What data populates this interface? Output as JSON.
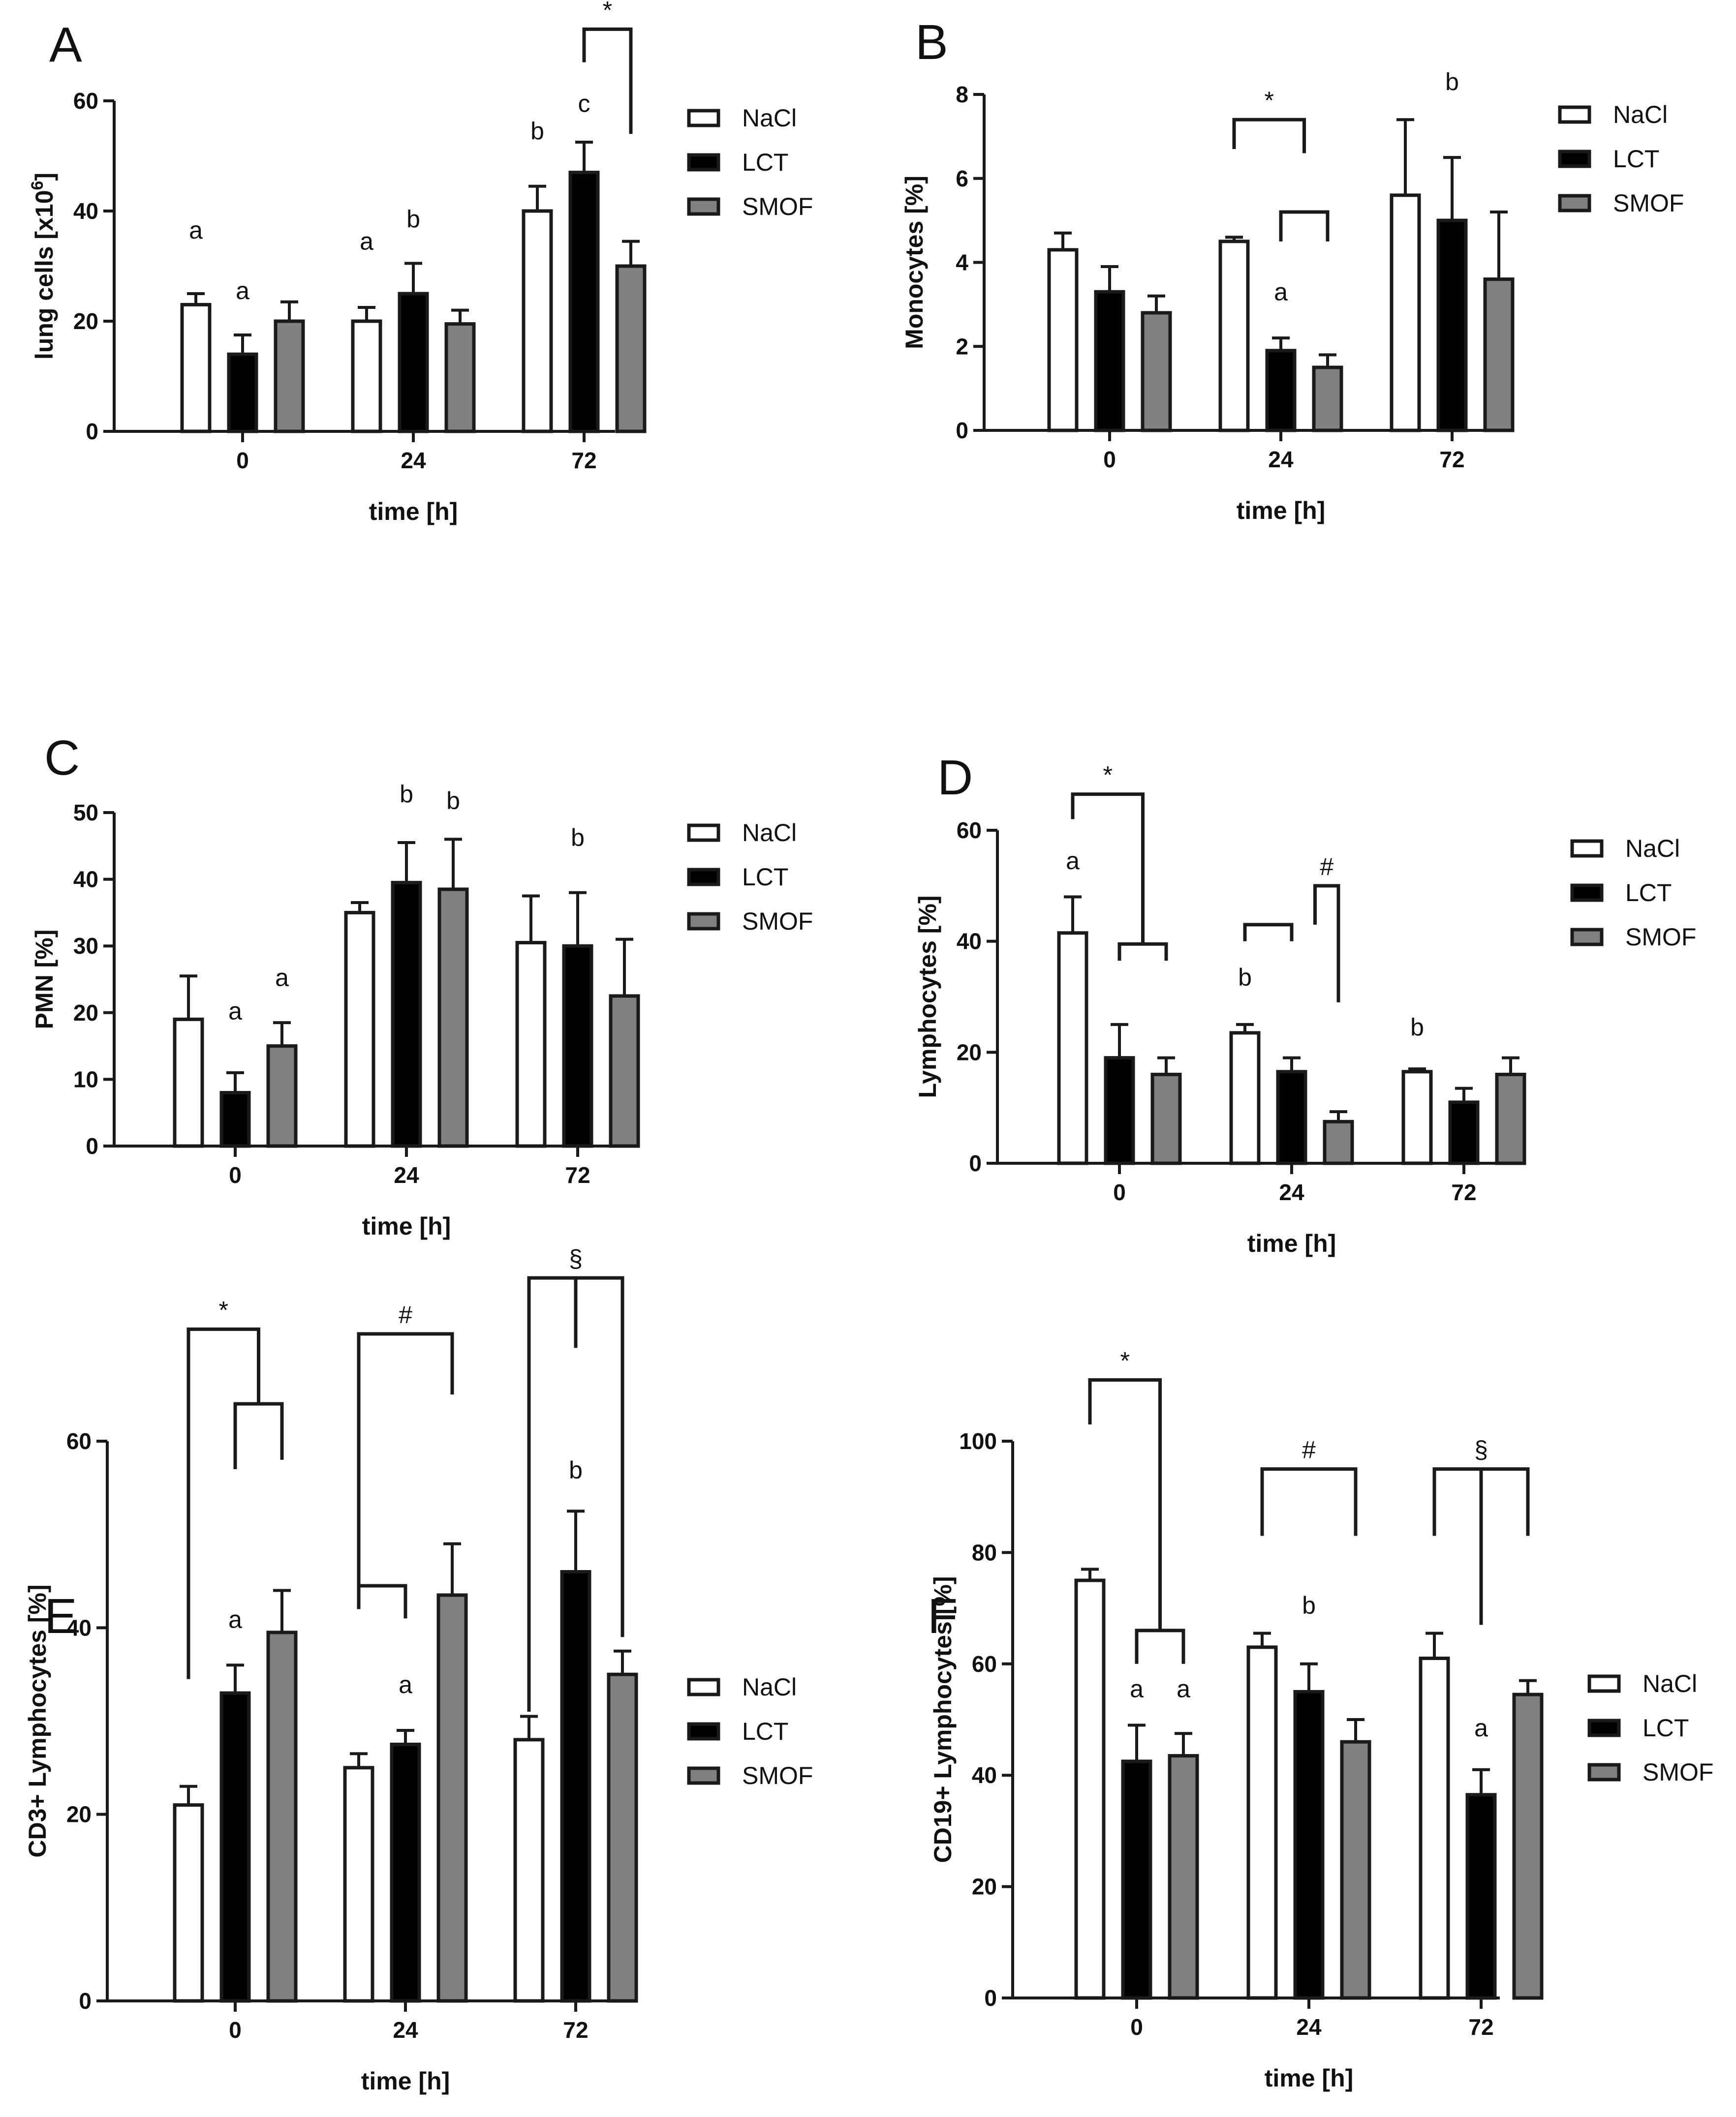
{
  "colors": {
    "NaCl": "#ffffff",
    "LCT": "#000000",
    "SMOF": "#808080",
    "stroke": "#1a1a1a"
  },
  "legend": [
    "NaCl",
    "LCT",
    "SMOF"
  ],
  "chart_data": [
    {
      "id": "A",
      "type": "bar",
      "panel_label": "A",
      "ylabel": "lung cells [x10",
      "ylabel_sup": "6",
      "ylabel_end": "]",
      "xlabel": "time [h]",
      "categories": [
        "0",
        "24",
        "72"
      ],
      "ylim": [
        0,
        60
      ],
      "yticks": [
        "0",
        "20",
        "40",
        "60"
      ],
      "series": [
        {
          "name": "NaCl",
          "values": [
            23,
            20,
            40
          ],
          "errors": [
            2,
            2.5,
            4.5
          ]
        },
        {
          "name": "LCT",
          "values": [
            14,
            25,
            47
          ],
          "errors": [
            3.5,
            5.5,
            5.5
          ]
        },
        {
          "name": "SMOF",
          "values": [
            20,
            19.5,
            30
          ],
          "errors": [
            3.5,
            2.5,
            4.5
          ]
        }
      ],
      "letters": [
        {
          "text": "a",
          "cat": 0,
          "series": 0,
          "value": 35
        },
        {
          "text": "a",
          "cat": 0,
          "series": 1,
          "value": 24
        },
        {
          "text": "a",
          "cat": 1,
          "series": 0,
          "value": 33
        },
        {
          "text": "b",
          "cat": 1,
          "series": 1,
          "value": 37
        },
        {
          "text": "b",
          "cat": 2,
          "series": 0,
          "value": 53
        },
        {
          "text": "c",
          "cat": 2,
          "series": 1,
          "value": 58
        }
      ],
      "brackets": [
        {
          "symbol": "*",
          "top": 73,
          "left": {
            "cat": 2,
            "series": 1,
            "bottom": 67
          },
          "right": {
            "cat": 2,
            "series": 2,
            "bottom": 54
          }
        }
      ]
    },
    {
      "id": "B",
      "type": "bar",
      "panel_label": "B",
      "ylabel": "Monocytes [%]",
      "xlabel": "time [h]",
      "categories": [
        "0",
        "24",
        "72"
      ],
      "ylim": [
        0,
        8
      ],
      "yticks": [
        "0",
        "2",
        "4",
        "6",
        "8"
      ],
      "series": [
        {
          "name": "NaCl",
          "values": [
            4.3,
            4.5,
            5.6
          ],
          "errors": [
            0.4,
            0.1,
            1.8
          ]
        },
        {
          "name": "LCT",
          "values": [
            3.3,
            1.9,
            5.0
          ],
          "errors": [
            0.6,
            0.3,
            1.5
          ]
        },
        {
          "name": "SMOF",
          "values": [
            2.8,
            1.5,
            3.6
          ],
          "errors": [
            0.4,
            0.3,
            1.6
          ]
        }
      ],
      "letters": [
        {
          "text": "a",
          "cat": 1,
          "series": 1,
          "value": 3.1
        },
        {
          "text": "b",
          "cat": 2,
          "series": 1,
          "value": 8.1
        }
      ],
      "brackets": [
        {
          "symbol": "*",
          "top": 7.4,
          "left": {
            "cat": 1,
            "series": 0,
            "bottom": 6.7
          },
          "right": {
            "cat": 1,
            "series": 12,
            "bottom": 6.6
          }
        },
        {
          "symbol": "",
          "top": 5.2,
          "left": {
            "cat": 1,
            "series": 1,
            "bottom": 4.5
          },
          "right": {
            "cat": 1,
            "series": 2,
            "bottom": 4.5
          }
        }
      ]
    },
    {
      "id": "C",
      "type": "bar",
      "panel_label": "C",
      "ylabel": "PMN [%]",
      "xlabel": "time [h]",
      "categories": [
        "0",
        "24",
        "72"
      ],
      "ylim": [
        0,
        50
      ],
      "yticks": [
        "0",
        "10",
        "20",
        "30",
        "40",
        "50"
      ],
      "series": [
        {
          "name": "NaCl",
          "values": [
            19,
            35,
            30.5
          ],
          "errors": [
            6.5,
            1.5,
            7
          ]
        },
        {
          "name": "LCT",
          "values": [
            8,
            39.5,
            30
          ],
          "errors": [
            3,
            6,
            8
          ]
        },
        {
          "name": "SMOF",
          "values": [
            15,
            38.5,
            22.5
          ],
          "errors": [
            3.5,
            7.5,
            8.5
          ]
        }
      ],
      "letters": [
        {
          "text": "a",
          "cat": 0,
          "series": 1,
          "value": 19
        },
        {
          "text": "a",
          "cat": 0,
          "series": 2,
          "value": 24
        },
        {
          "text": "b",
          "cat": 1,
          "series": 1,
          "value": 51.5
        },
        {
          "text": "b",
          "cat": 1,
          "series": 2,
          "value": 50.5
        },
        {
          "text": "b",
          "cat": 2,
          "series": 1,
          "value": 45
        }
      ],
      "brackets": []
    },
    {
      "id": "D",
      "type": "bar",
      "panel_label": "D",
      "ylabel": "Lymphocytes  [%]",
      "xlabel": "time [h]",
      "categories": [
        "0",
        "24",
        "72"
      ],
      "ylim": [
        0,
        60
      ],
      "yticks": [
        "0",
        "20",
        "40",
        "60"
      ],
      "series": [
        {
          "name": "NaCl",
          "values": [
            41.5,
            23.5,
            16.5
          ],
          "errors": [
            6.5,
            1.5,
            0.5
          ]
        },
        {
          "name": "LCT",
          "values": [
            19,
            16.5,
            11
          ],
          "errors": [
            6,
            2.5,
            2.5
          ]
        },
        {
          "name": "SMOF",
          "values": [
            16,
            7.5,
            16
          ],
          "errors": [
            3,
            1.8,
            3
          ]
        }
      ],
      "letters": [
        {
          "text": "a",
          "cat": 0,
          "series": 0,
          "value": 53
        },
        {
          "text": "b",
          "cat": 1,
          "series": 0,
          "value": 32
        },
        {
          "text": "b",
          "cat": 2,
          "series": 0,
          "value": 23
        }
      ],
      "brackets": [
        {
          "symbol": "*",
          "top": 66.5,
          "left": {
            "cat": 0,
            "series": 0,
            "bottom": 62
          },
          "right": {
            "cat": 0,
            "series": 12,
            "bottom": 39.5
          }
        },
        {
          "symbol": "",
          "top": 39.5,
          "left": {
            "cat": 0,
            "series": 1,
            "bottom": 36.5
          },
          "right": {
            "cat": 0,
            "series": 2,
            "bottom": 36.5
          }
        },
        {
          "symbol": "#",
          "top": 50,
          "left": {
            "cat": 1,
            "series": 12,
            "bottom": 43
          },
          "right": {
            "cat": 1,
            "series": 2,
            "bottom": 29
          }
        },
        {
          "symbol": "",
          "top": 43,
          "left": {
            "cat": 1,
            "series": 0,
            "bottom": 40
          },
          "right": {
            "cat": 1,
            "series": 1,
            "bottom": 40
          }
        }
      ]
    },
    {
      "id": "E",
      "type": "bar",
      "panel_label": "E",
      "ylabel": "CD3+ Lymphocytes [%]",
      "xlabel": "time [h]",
      "categories": [
        "0",
        "24",
        "72"
      ],
      "ylim": [
        0,
        60
      ],
      "yticks": [
        "0",
        "20",
        "40",
        "60"
      ],
      "series": [
        {
          "name": "NaCl",
          "values": [
            21,
            25,
            28
          ],
          "errors": [
            2,
            1.5,
            2.5
          ]
        },
        {
          "name": "LCT",
          "values": [
            33,
            27.5,
            46
          ],
          "errors": [
            3,
            1.5,
            6.5
          ]
        },
        {
          "name": "SMOF",
          "values": [
            39.5,
            43.5,
            35
          ],
          "errors": [
            4.5,
            5.5,
            2.5
          ]
        }
      ],
      "letters": [
        {
          "text": "a",
          "cat": 0,
          "series": 1,
          "value": 40
        },
        {
          "text": "a",
          "cat": 1,
          "series": 1,
          "value": 33
        },
        {
          "text": "b",
          "cat": 2,
          "series": 1,
          "value": 56
        }
      ],
      "brackets": [
        {
          "symbol": "*",
          "top": 72,
          "left": {
            "cat": 0,
            "series": 0,
            "bottom": 34.5
          },
          "right": {
            "cat": 0,
            "series": 12,
            "bottom": 64
          }
        },
        {
          "symbol": "",
          "top": 64,
          "left": {
            "cat": 0,
            "series": 1,
            "bottom": 57
          },
          "right": {
            "cat": 0,
            "series": 2,
            "bottom": 58
          }
        },
        {
          "symbol": "#",
          "top": 71.5,
          "left": {
            "cat": 1,
            "series": 0,
            "bottom": 42
          },
          "right": {
            "cat": 1,
            "series": 2,
            "bottom": 65
          }
        },
        {
          "symbol": "",
          "top": 44.5,
          "left": {
            "cat": 1,
            "series": 0,
            "bottom": 42
          },
          "right": {
            "cat": 1,
            "series": 1,
            "bottom": 41
          }
        },
        {
          "symbol": "§",
          "top": 77.5,
          "left": {
            "cat": 2,
            "series": 0,
            "bottom": 31
          },
          "right": {
            "cat": 2,
            "series": 2,
            "bottom": 39
          }
        },
        {
          "symbol": "",
          "top": 77.5,
          "left": {
            "cat": 2,
            "series": 1,
            "bottom": 70
          },
          "right": {
            "cat": 2,
            "series": 1,
            "bottom": 70
          }
        }
      ]
    },
    {
      "id": "F",
      "type": "bar",
      "panel_label": "F",
      "ylabel": "CD19+ Lymphocytes [%]",
      "xlabel": "time [h]",
      "categories": [
        "0",
        "24",
        "72"
      ],
      "ylim": [
        0,
        100
      ],
      "yticks": [
        "0",
        "20",
        "40",
        "60",
        "80",
        "100"
      ],
      "series": [
        {
          "name": "NaCl",
          "values": [
            75,
            63,
            61
          ],
          "errors": [
            2,
            2.5,
            4.5
          ]
        },
        {
          "name": "LCT",
          "values": [
            42.5,
            55,
            36.5
          ],
          "errors": [
            6.5,
            5,
            4.5
          ]
        },
        {
          "name": "SMOF",
          "values": [
            43.5,
            46,
            54.5
          ],
          "errors": [
            4,
            4,
            2.5
          ]
        }
      ],
      "letters": [
        {
          "text": "a",
          "cat": 0,
          "series": 1,
          "value": 54
        },
        {
          "text": "a",
          "cat": 0,
          "series": 2,
          "value": 54
        },
        {
          "text": "b",
          "cat": 1,
          "series": 1,
          "value": 69
        },
        {
          "text": "a",
          "cat": 2,
          "series": 1,
          "value": 47
        }
      ],
      "brackets": [
        {
          "symbol": "*",
          "top": 111,
          "left": {
            "cat": 0,
            "series": 0,
            "bottom": 103
          },
          "right": {
            "cat": 0,
            "series": 12,
            "bottom": 66
          }
        },
        {
          "symbol": "",
          "top": 66,
          "left": {
            "cat": 0,
            "series": 1,
            "bottom": 60
          },
          "right": {
            "cat": 0,
            "series": 2,
            "bottom": 60
          }
        },
        {
          "symbol": "#",
          "top": 95,
          "left": {
            "cat": 1,
            "series": 0,
            "bottom": 83
          },
          "right": {
            "cat": 1,
            "series": 2,
            "bottom": 83
          }
        },
        {
          "symbol": "§",
          "top": 95,
          "left": {
            "cat": 2,
            "series": 0,
            "bottom": 83
          },
          "right": {
            "cat": 2,
            "series": 2,
            "bottom": 83
          }
        },
        {
          "symbol": "",
          "top": 95,
          "left": {
            "cat": 2,
            "series": 1,
            "bottom": 67
          },
          "right": {
            "cat": 2,
            "series": 1,
            "bottom": 67
          }
        }
      ]
    }
  ]
}
